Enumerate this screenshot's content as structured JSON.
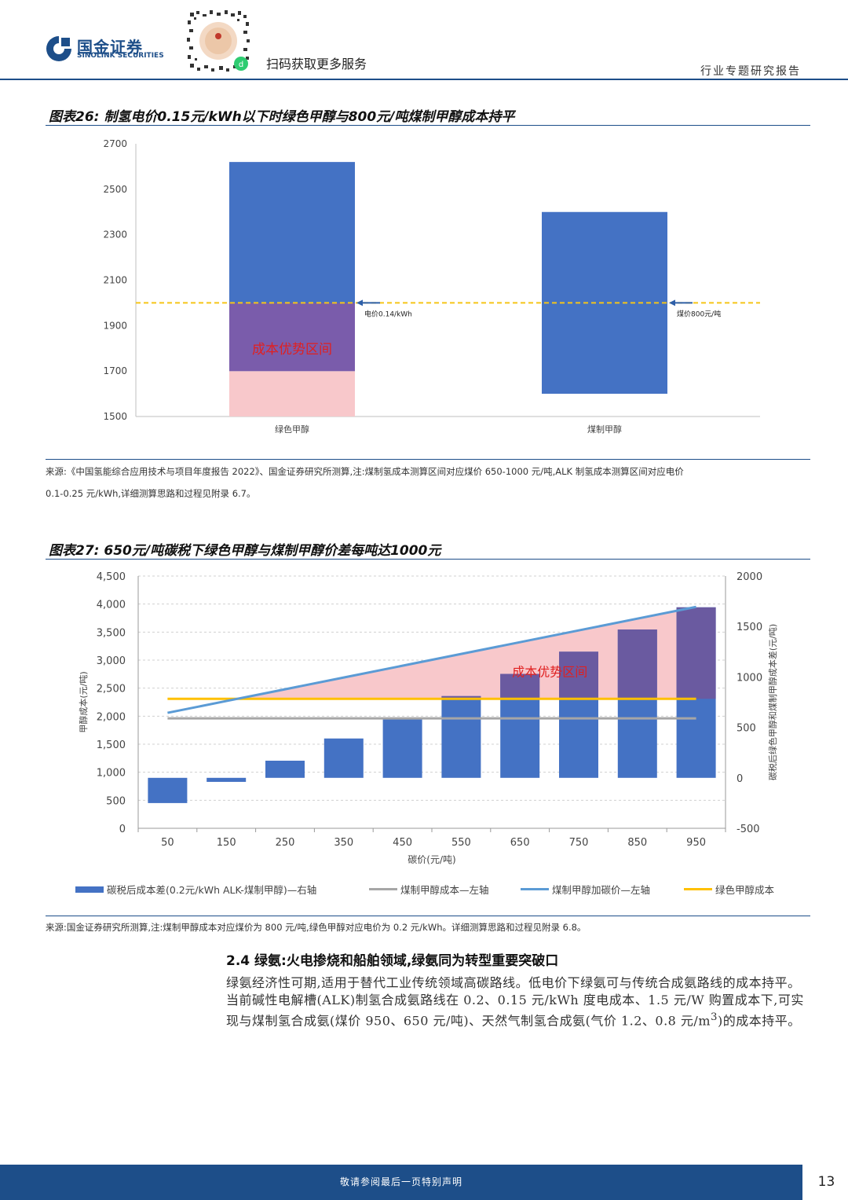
{
  "header": {
    "logo_cn": "国金证券",
    "logo_en": "SINOLINK SECURITIES",
    "qr_caption": "扫码获取更多服务",
    "report_type": "行业专题研究报告",
    "brand_color": "#1d4e89"
  },
  "figure26": {
    "title": "图表26: 制氢电价0.15元/kWh以下时绿色甲醇与800元/吨煤制甲醇成本持平",
    "source_line1": "来源:《中国氢能综合应用技术与项目年度报告 2022》、国金证券研究所测算,注:煤制氢成本测算区间对应煤价 650-1000 元/吨,ALK 制氢成本测算区间对应电价",
    "source_line2": "0.1-0.25 元/kWh,详细测算思路和过程见附录 6.7。"
  },
  "figure27": {
    "title": "图表27: 650元/吨碳税下绿色甲醇与煤制甲醇价差每吨达1000元",
    "source": "来源:国金证券研究所测算,注:煤制甲醇成本对应煤价为 800 元/吨,绿色甲醇对应电价为 0.2 元/kWh。详细测算思路和过程见附录 6.8。",
    "legend": [
      {
        "label": "碳税后成本差(0.2元/kWh ALK-煤制甲醇)—右轴",
        "color": "#4472c4"
      },
      {
        "label": "煤制甲醇成本—左轴",
        "color": "#a6a6a6"
      },
      {
        "label": "煤制甲醇加碳价—左轴",
        "color": "#5b9bd5"
      },
      {
        "label": "绿色甲醇成本",
        "color": "#ffc000"
      }
    ]
  },
  "section": {
    "title": "2.4 绿氨:火电掺烧和船舶领域,绿氨同为转型重要突破口",
    "para_html": "绿氨经济性可期,适用于替代工业传统领域高碳路线。低电价下绿氨可与传统合成氨路线的成本持平。当前碱性电解槽(ALK)制氢合成氨路线在 0.2、0.15 元/kWh 度电成本、1.5 元/W 购置成本下,可实现与煤制氢合成氨(煤价 950、650 元/吨)、天然气制氢合成氨(气价 1.2、0.8 元/m<sup>3</sup>)的成本持平。"
  },
  "footer": {
    "notice": "敬请参阅最后一页特别声明",
    "page": "13"
  },
  "chart_data": [
    {
      "type": "bar",
      "categories": [
        "绿色甲醇",
        "煤制甲醇"
      ],
      "ranges": [
        [
          1500,
          2620
        ],
        [
          1600,
          2400
        ]
      ],
      "ylim": [
        1500,
        2700
      ],
      "yticks": [
        1500,
        1700,
        1900,
        2100,
        2300,
        2500,
        2700
      ],
      "reference_line": 2000,
      "advantage_zone": {
        "from": 1700,
        "to": 2000,
        "label": "成本优势区间"
      },
      "pink_zone": [
        1500,
        1700
      ],
      "annotations": [
        {
          "text": "电价0.14/kWh",
          "category": 0,
          "y": 2000
        },
        {
          "text": "煤价800元/吨",
          "category": 1,
          "y": 2000
        }
      ],
      "colors": {
        "bar": "#4472c4",
        "purple": "#7a5cab",
        "pink": "#f8c8cb",
        "dashed": "#f5c518"
      },
      "xlabel": "",
      "ylabel": "",
      "grid": false
    },
    {
      "type": "bar",
      "categories": [
        50,
        150,
        250,
        350,
        450,
        550,
        650,
        750,
        850,
        950
      ],
      "xlabel": "碳价(元/吨)",
      "ylabel_left": "甲醇成本(元/吨)",
      "ylabel_right": "碳税后绿色甲醇和煤制甲醇成本差(元/吨)",
      "ylim_left": [
        0,
        4500
      ],
      "yticks_left": [
        "0",
        "500",
        "1,000",
        "1,500",
        "2,000",
        "2,500",
        "3,000",
        "3,500",
        "4,000",
        "4,500"
      ],
      "ylim_right": [
        -500,
        2000
      ],
      "yticks_right": [
        "-500",
        "0",
        "500",
        "1000",
        "1500",
        "2000"
      ],
      "series": [
        {
          "name": "碳税后成本差(0.2元/kWh ALK-煤制甲醇)—右轴",
          "axis": "right",
          "kind": "bar",
          "values": [
            -250,
            -40,
            170,
            390,
            590,
            810,
            1030,
            1250,
            1470,
            1690
          ]
        },
        {
          "name": "煤制甲醇成本—左轴",
          "axis": "left",
          "kind": "line",
          "values": [
            1960,
            1960,
            1960,
            1960,
            1960,
            1960,
            1960,
            1960,
            1960,
            1960
          ]
        },
        {
          "name": "煤制甲醇加碳价—左轴",
          "axis": "left",
          "kind": "line",
          "values": [
            2060,
            2270,
            2480,
            2690,
            2900,
            3110,
            3320,
            3530,
            3740,
            3950
          ]
        },
        {
          "name": "绿色甲醇成本",
          "axis": "left",
          "kind": "line",
          "values": [
            2310,
            2310,
            2310,
            2310,
            2310,
            2310,
            2310,
            2310,
            2310,
            2310
          ]
        }
      ],
      "advantage_label": "成本优势区间",
      "colors": {
        "bar": "#4472c4",
        "bar_overlap": "#6a5aa0",
        "pink": "#f8c8cb",
        "gray": "#a6a6a6",
        "blue_line": "#5b9bd5",
        "yellow": "#ffc000"
      },
      "grid": true
    }
  ]
}
